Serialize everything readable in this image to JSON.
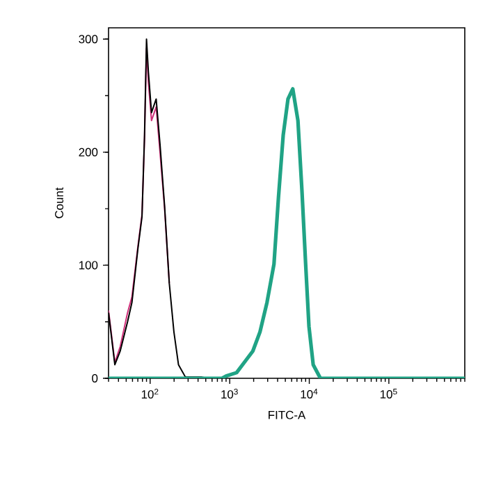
{
  "chart_data": {
    "type": "line",
    "xlabel": "FITC-A",
    "ylabel": "Count",
    "log": "x",
    "xlim": [
      30,
      900000
    ],
    "ylim": [
      0,
      310
    ],
    "xticks": [
      {
        "value": 100,
        "label": "10$^{2}$"
      },
      {
        "value": 1000,
        "label": "10$^{3}$"
      },
      {
        "value": 10000,
        "label": "10$^{4}$"
      },
      {
        "value": 100000,
        "label": "10$^{5}$"
      }
    ],
    "yticks": [
      0,
      100,
      200,
      300
    ],
    "series": [
      {
        "color": "#d0307a",
        "x": [
          30,
          36,
          42,
          52,
          59,
          70,
          79,
          85,
          90,
          95,
          104,
          119,
          133,
          152,
          174
        ],
        "values": [
          60,
          14,
          28,
          58,
          72,
          116,
          145,
          212,
          292,
          262,
          228,
          240,
          200,
          150,
          84
        ]
      },
      {
        "color": "#000000",
        "x": [
          30,
          36,
          42,
          52,
          59,
          70,
          79,
          85,
          90,
          95,
          104,
          119,
          133,
          152,
          174,
          199,
          227,
          278,
          447,
          550,
          810,
          900
        ],
        "values": [
          58,
          12,
          24,
          50,
          67,
          114,
          143,
          215,
          300,
          271,
          235,
          247,
          207,
          152,
          84,
          41,
          12,
          1,
          1,
          0,
          0,
          0
        ]
      },
      {
        "color": "#20a385",
        "x": [
          30,
          800,
          900,
          1220,
          1600,
          1950,
          2400,
          2940,
          3600,
          4100,
          4700,
          5400,
          6200,
          7200,
          8100,
          9000,
          9900,
          11200,
          13800,
          900000
        ],
        "values": [
          0,
          0,
          2,
          5,
          16,
          24,
          41,
          67,
          101,
          160,
          215,
          247,
          256,
          228,
          165,
          101,
          46,
          12,
          0,
          0
        ]
      }
    ]
  }
}
